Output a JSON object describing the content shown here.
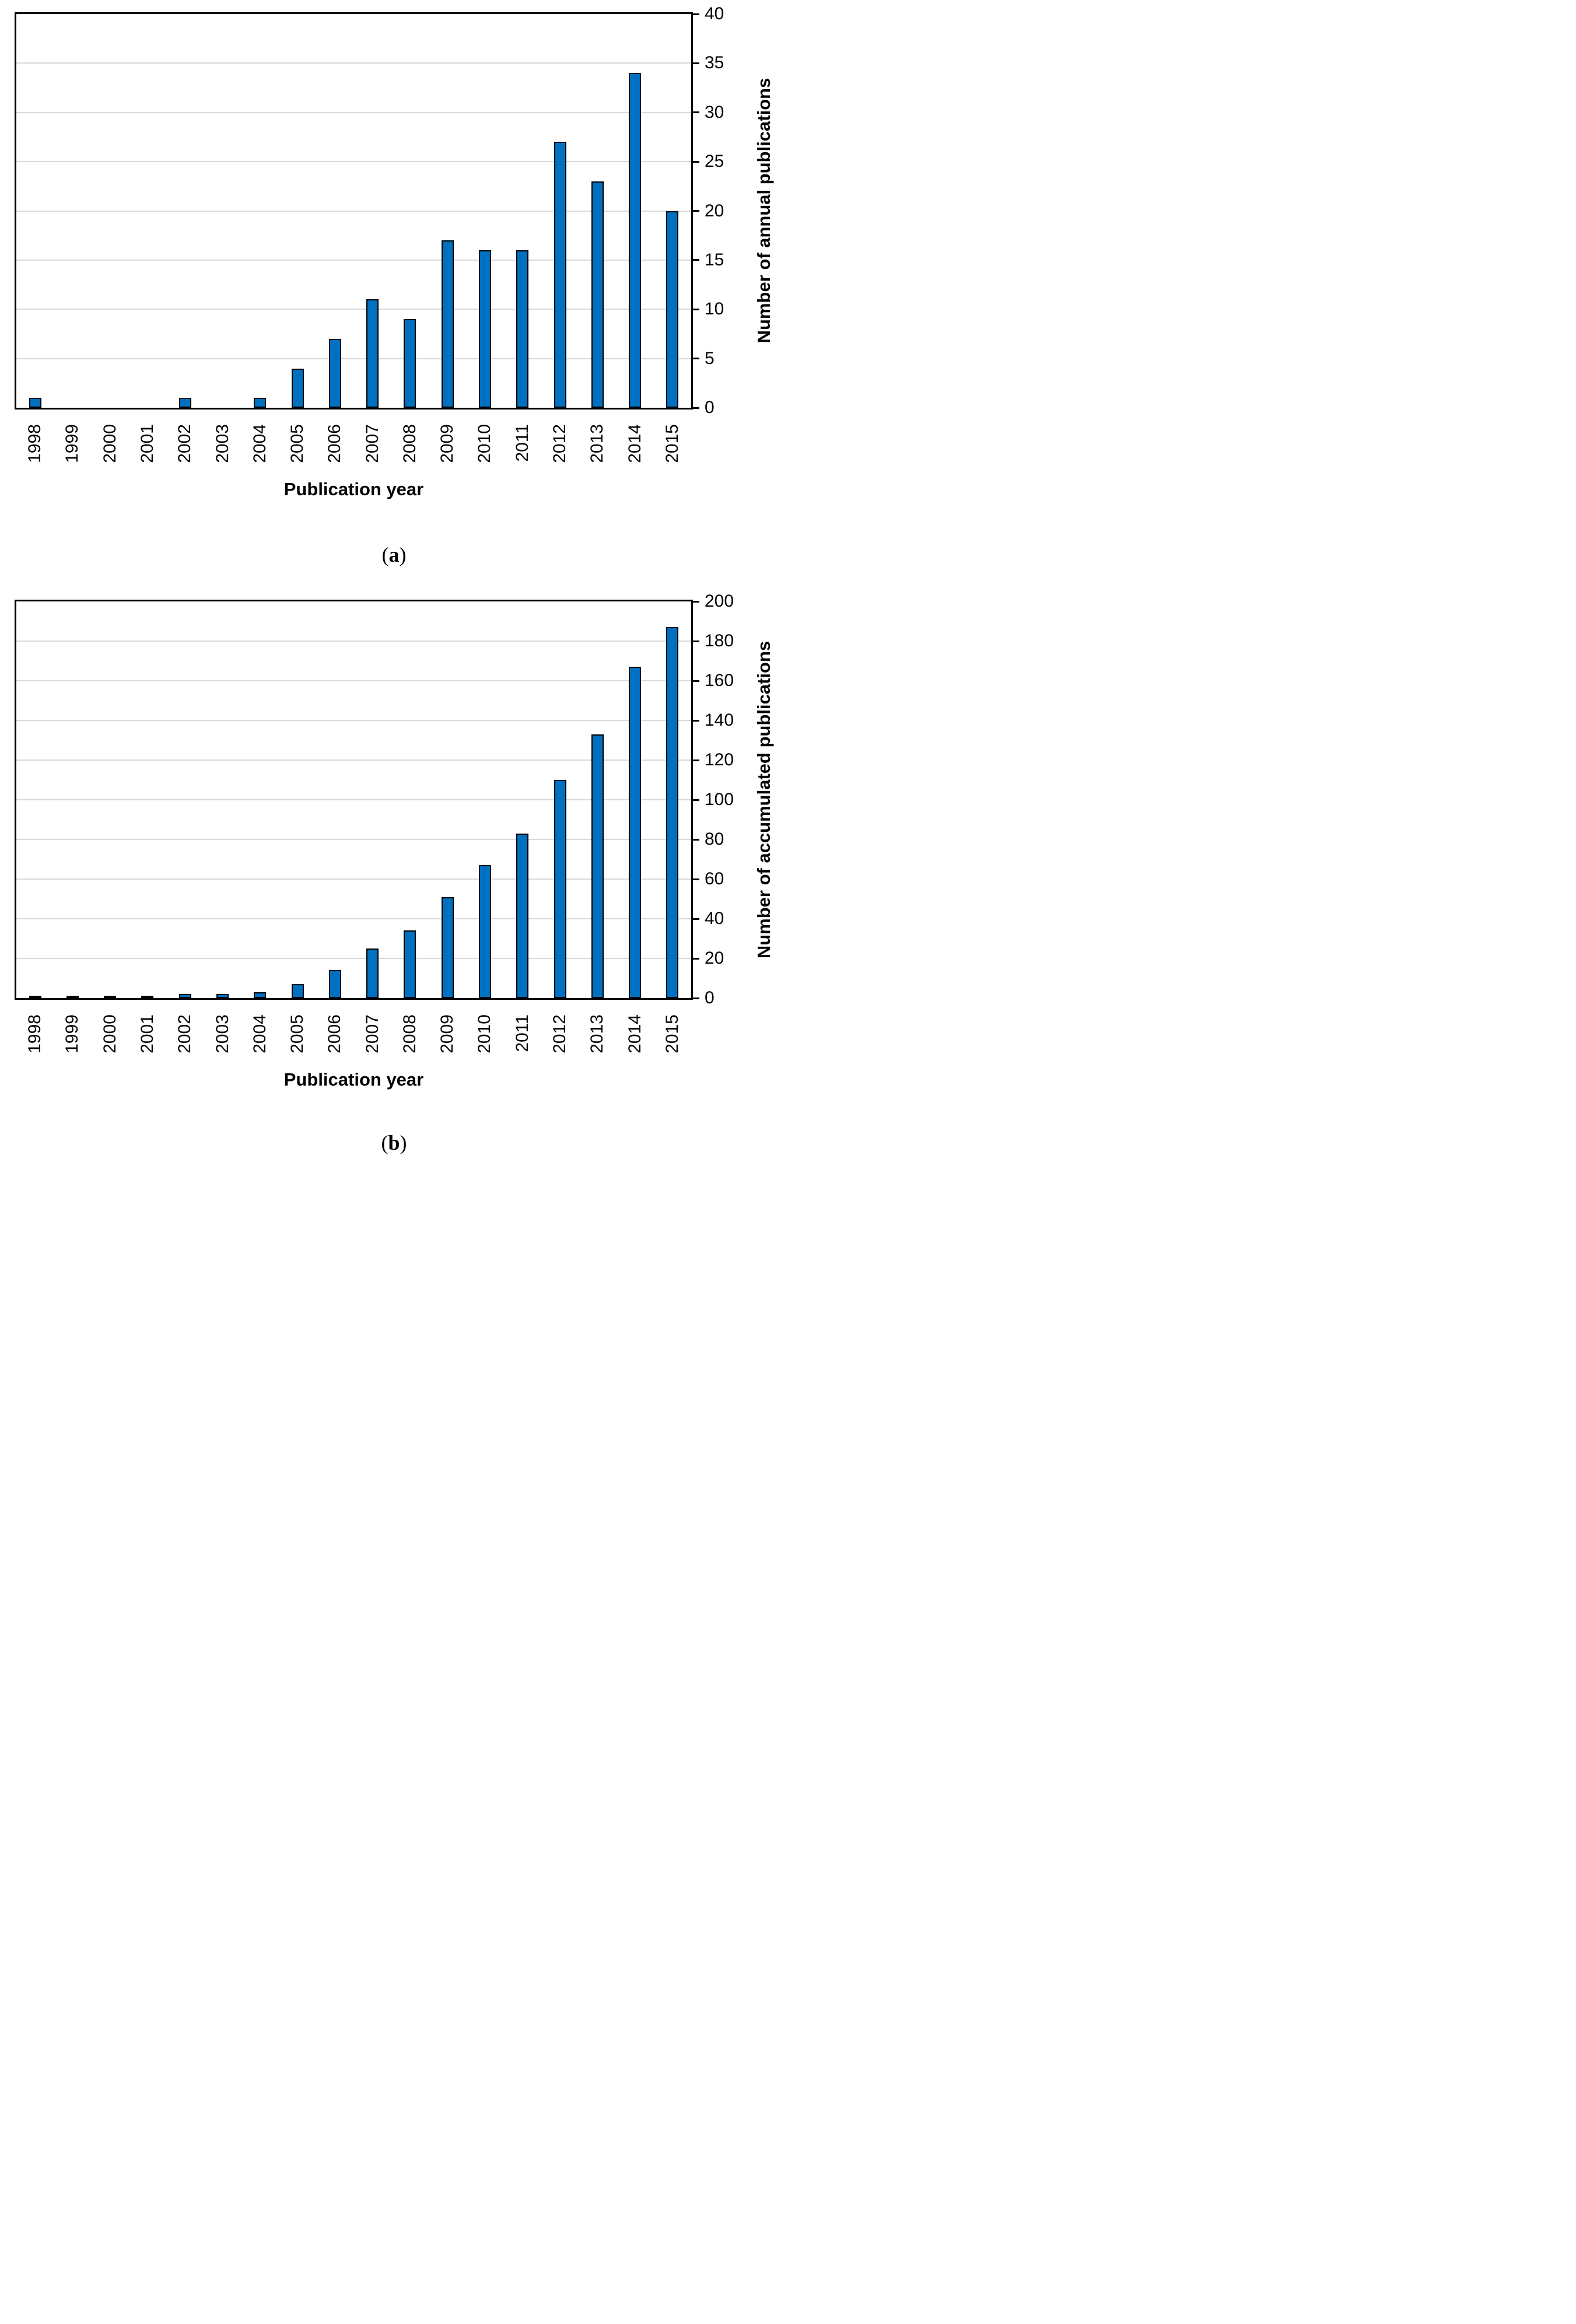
{
  "style": {
    "bar_fill": "#0070C0",
    "bar_outline": "#000000",
    "gridline_color": "#D9D9D9",
    "axis_color": "#000000",
    "background": "#FFFFFF"
  },
  "chart_data": [
    {
      "type": "bar",
      "panel": "a",
      "title": "",
      "categories": [
        "1998",
        "1999",
        "2000",
        "2001",
        "2002",
        "2003",
        "2004",
        "2005",
        "2006",
        "2007",
        "2008",
        "2009",
        "2010",
        "2011",
        "2012",
        "2013",
        "2014",
        "2015"
      ],
      "values": [
        1,
        0,
        0,
        0,
        1,
        0,
        1,
        4,
        7,
        11,
        9,
        17,
        16,
        16,
        27,
        23,
        34,
        20
      ],
      "xlabel": "Publication year",
      "ylabel": "Number of annual publications",
      "ylim": [
        0,
        40
      ],
      "yticks": [
        0,
        5,
        10,
        15,
        20,
        25,
        30,
        35,
        40
      ],
      "grid": "horizontal",
      "legend_position": "none",
      "caption": {
        "open": "(",
        "letter": "a",
        "close": ")"
      }
    },
    {
      "type": "bar",
      "panel": "b",
      "title": "",
      "categories": [
        "1998",
        "1999",
        "2000",
        "2001",
        "2002",
        "2003",
        "2004",
        "2005",
        "2006",
        "2007",
        "2008",
        "2009",
        "2010",
        "2011",
        "2012",
        "2013",
        "2014",
        "2015"
      ],
      "values": [
        1,
        1,
        1,
        1,
        2,
        2,
        3,
        7,
        14,
        25,
        34,
        51,
        67,
        83,
        110,
        133,
        167,
        187
      ],
      "xlabel": "Publication year",
      "ylabel": "Number of accumulated publications",
      "ylim": [
        0,
        200
      ],
      "yticks": [
        0,
        20,
        40,
        60,
        80,
        100,
        120,
        140,
        160,
        180,
        200
      ],
      "grid": "horizontal",
      "legend_position": "none",
      "caption": {
        "open": "(",
        "letter": "b",
        "close": ")"
      }
    }
  ]
}
